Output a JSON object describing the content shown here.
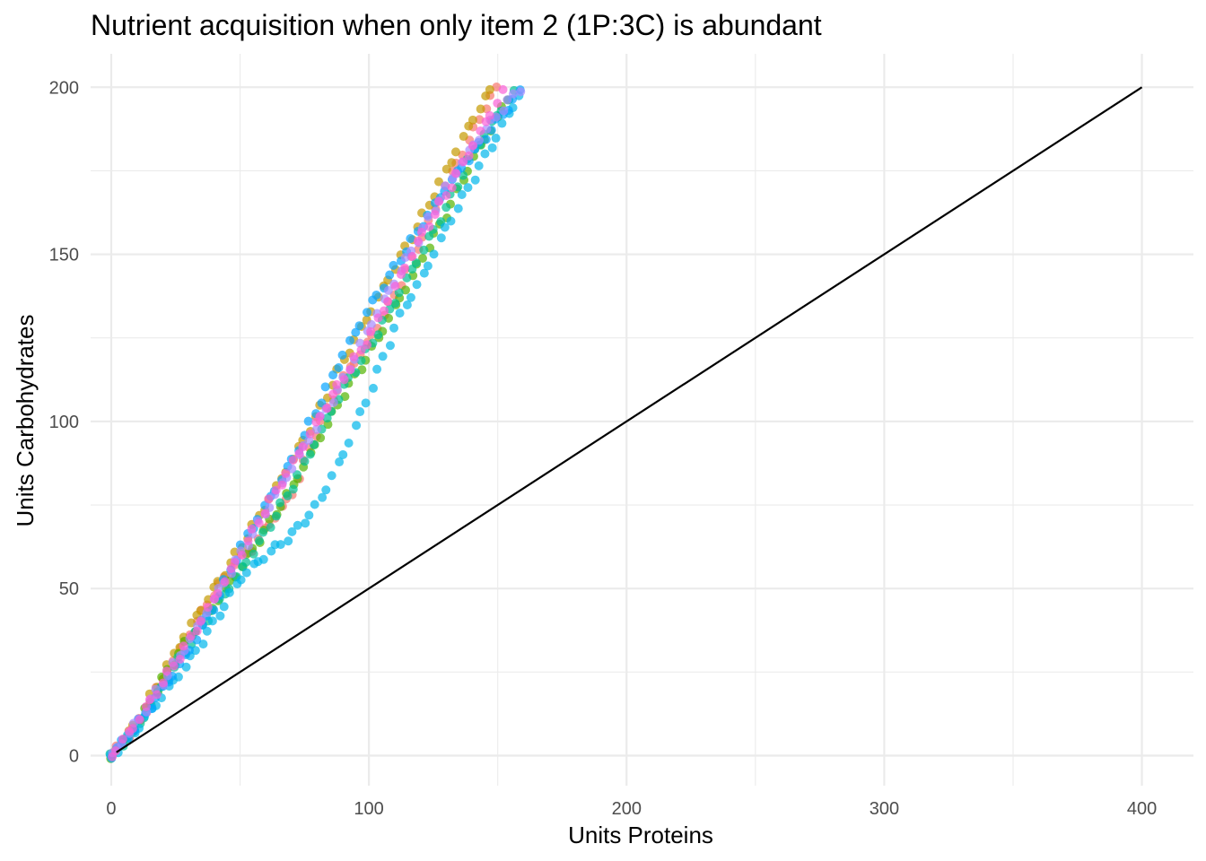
{
  "chart_data": {
    "type": "scatter",
    "title": "Nutrient acquisition when only item 2 (1P:3C) is abundant",
    "xlabel": "Units Proteins",
    "ylabel": "Units Carbohydrates",
    "xlim": [
      -8,
      420
    ],
    "ylim": [
      -9,
      210
    ],
    "x_ticks": [
      0,
      100,
      200,
      300,
      400
    ],
    "x_tick_labels": [
      "0",
      "100",
      "200",
      "300",
      "400"
    ],
    "y_ticks": [
      0,
      50,
      100,
      150,
      200
    ],
    "y_tick_labels": [
      "0",
      "50",
      "100",
      "150",
      "200"
    ],
    "x_minor": [
      50,
      150,
      250,
      350
    ],
    "y_minor": [
      25,
      75,
      125,
      175
    ],
    "grid": true,
    "legend": "none",
    "point_opacity": 0.7,
    "reference_line": {
      "x": [
        2,
        400
      ],
      "y": [
        1,
        200
      ],
      "color": "#000000"
    },
    "series": [
      {
        "color": "#F8766D",
        "step": 2.2,
        "points": [
          [
            0,
            0
          ],
          [
            10,
            9
          ],
          [
            20,
            23
          ],
          [
            30,
            36
          ],
          [
            40,
            49
          ],
          [
            50,
            59
          ],
          [
            55,
            62
          ],
          [
            60,
            68
          ],
          [
            70,
            78
          ],
          [
            80,
            98
          ],
          [
            90,
            113
          ],
          [
            100,
            124
          ],
          [
            110,
            138
          ],
          [
            120,
            154
          ],
          [
            130,
            171
          ],
          [
            140,
            186
          ],
          [
            145,
            194
          ],
          [
            150,
            200
          ]
        ]
      },
      {
        "color": "#C49A00",
        "step": 2.2,
        "points": [
          [
            0,
            0
          ],
          [
            10,
            10
          ],
          [
            20,
            24
          ],
          [
            30,
            38
          ],
          [
            40,
            50
          ],
          [
            50,
            62
          ],
          [
            60,
            75
          ],
          [
            70,
            88
          ],
          [
            80,
            102
          ],
          [
            90,
            118
          ],
          [
            100,
            132
          ],
          [
            110,
            146
          ],
          [
            120,
            160
          ],
          [
            130,
            175
          ],
          [
            140,
            190
          ],
          [
            148,
            200
          ]
        ]
      },
      {
        "color": "#53B400",
        "step": 2.2,
        "points": [
          [
            0,
            0
          ],
          [
            10,
            9
          ],
          [
            20,
            23
          ],
          [
            30,
            35
          ],
          [
            40,
            45
          ],
          [
            50,
            56
          ],
          [
            60,
            68
          ],
          [
            70,
            80
          ],
          [
            80,
            94
          ],
          [
            90,
            108
          ],
          [
            100,
            120
          ],
          [
            110,
            134
          ],
          [
            120,
            148
          ],
          [
            130,
            162
          ],
          [
            140,
            178
          ],
          [
            150,
            191
          ],
          [
            156,
            200
          ]
        ]
      },
      {
        "color": "#00C094",
        "step": 2.2,
        "points": [
          [
            0,
            0
          ],
          [
            10,
            8
          ],
          [
            20,
            21
          ],
          [
            30,
            33
          ],
          [
            40,
            44
          ],
          [
            50,
            55
          ],
          [
            60,
            67
          ],
          [
            70,
            80
          ],
          [
            80,
            95
          ],
          [
            90,
            110
          ],
          [
            100,
            122
          ],
          [
            110,
            136
          ],
          [
            120,
            150
          ],
          [
            130,
            164
          ],
          [
            140,
            180
          ],
          [
            150,
            192
          ],
          [
            158,
            200
          ]
        ]
      },
      {
        "color": "#00B6EB",
        "step": 2.2,
        "points": [
          [
            0,
            0
          ],
          [
            10,
            8
          ],
          [
            20,
            18
          ],
          [
            30,
            28
          ],
          [
            40,
            40
          ],
          [
            50,
            53
          ],
          [
            60,
            60
          ],
          [
            70,
            66
          ],
          [
            80,
            75
          ],
          [
            90,
            90
          ],
          [
            100,
            108
          ],
          [
            110,
            128
          ],
          [
            115,
            136
          ],
          [
            120,
            142
          ],
          [
            130,
            158
          ],
          [
            140,
            172
          ],
          [
            150,
            186
          ],
          [
            160,
            200
          ]
        ]
      },
      {
        "color": "#06A4FF",
        "step": 2.2,
        "points": [
          [
            0,
            0
          ],
          [
            10,
            9
          ],
          [
            20,
            20
          ],
          [
            30,
            31
          ],
          [
            40,
            45
          ],
          [
            50,
            62
          ],
          [
            60,
            75
          ],
          [
            70,
            88
          ],
          [
            80,
            104
          ],
          [
            90,
            120
          ],
          [
            100,
            134
          ],
          [
            110,
            146
          ],
          [
            120,
            158
          ],
          [
            130,
            170
          ],
          [
            140,
            180
          ],
          [
            150,
            190
          ],
          [
            160,
            200
          ]
        ]
      },
      {
        "color": "#A58AFF",
        "step": 2.2,
        "points": [
          [
            0,
            0
          ],
          [
            10,
            10
          ],
          [
            20,
            22
          ],
          [
            30,
            34
          ],
          [
            40,
            47
          ],
          [
            50,
            60
          ],
          [
            60,
            73
          ],
          [
            70,
            86
          ],
          [
            80,
            99
          ],
          [
            90,
            112
          ],
          [
            100,
            128
          ],
          [
            110,
            142
          ],
          [
            120,
            156
          ],
          [
            130,
            170
          ],
          [
            140,
            182
          ],
          [
            150,
            192
          ],
          [
            159,
            200
          ]
        ]
      },
      {
        "color": "#FB61D7",
        "step": 2.2,
        "points": [
          [
            0,
            0
          ],
          [
            10,
            10
          ],
          [
            20,
            22
          ],
          [
            30,
            34
          ],
          [
            40,
            47
          ],
          [
            50,
            60
          ],
          [
            60,
            74
          ],
          [
            70,
            87
          ],
          [
            80,
            100
          ],
          [
            90,
            113
          ],
          [
            100,
            125
          ],
          [
            110,
            140
          ],
          [
            120,
            155
          ],
          [
            130,
            168
          ],
          [
            140,
            182
          ],
          [
            150,
            196
          ],
          [
            153,
            200
          ]
        ]
      }
    ]
  }
}
